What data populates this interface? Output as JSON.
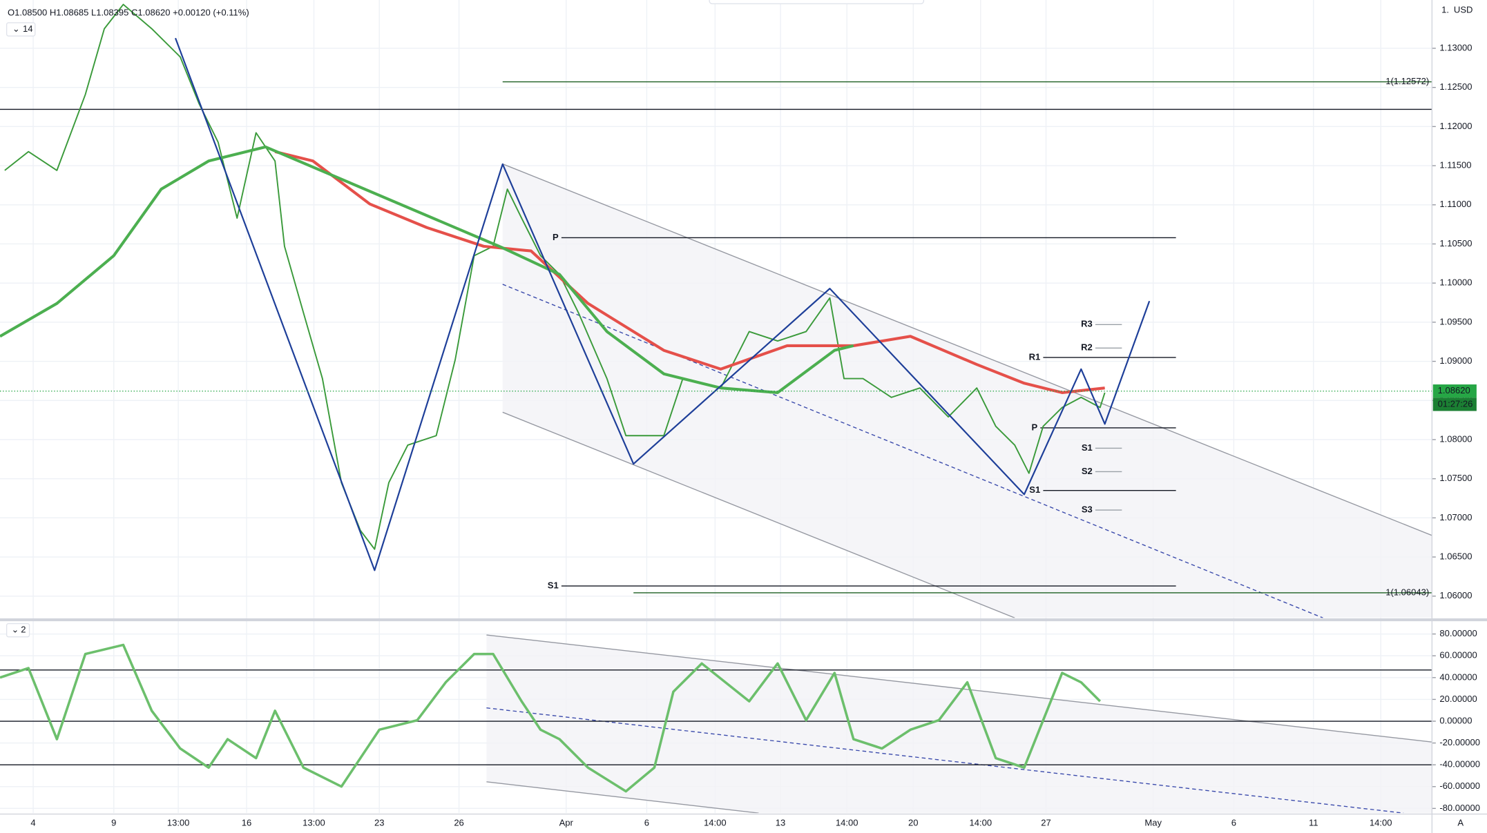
{
  "ui": {
    "ohlc": "O1.08500 H1.08685 L1.08395 C1.08620 +0.00120 (+0.11%)",
    "interval": "14",
    "pane_count": "2",
    "currency": "USD",
    "scale_button": "1.",
    "countdown": "01:27:26"
  },
  "chart_data": [
    {
      "type": "line",
      "xlim": [
        0,
        151
      ],
      "ylim": [
        1.05722,
        1.13617
      ],
      "yticks": [
        {
          "value": 1.06,
          "label": "1.06000"
        },
        {
          "value": 1.065,
          "label": "1.06500"
        },
        {
          "value": 1.07,
          "label": "1.07000"
        },
        {
          "value": 1.075,
          "label": "1.07500"
        },
        {
          "value": 1.08,
          "label": "1.08000"
        },
        {
          "value": 1.085,
          "label": "1.08500"
        },
        {
          "value": 1.09,
          "label": "1.09000"
        },
        {
          "value": 1.095,
          "label": "1.09500"
        },
        {
          "value": 1.1,
          "label": "1.10000"
        },
        {
          "value": 1.105,
          "label": "1.10500"
        },
        {
          "value": 1.11,
          "label": "1.11000"
        },
        {
          "value": 1.115,
          "label": "1.11500"
        },
        {
          "value": 1.12,
          "label": "1.12000"
        },
        {
          "value": 1.125,
          "label": "1.12500"
        },
        {
          "value": 1.13,
          "label": "1.13000"
        }
      ],
      "series": [
        {
          "color": "#3a9a3a",
          "width": 1.4,
          "x": [
            0.5,
            3,
            6,
            9,
            11,
            13,
            16,
            19,
            21,
            23,
            25,
            27,
            29,
            30,
            32,
            34,
            36,
            38,
            39.5,
            41,
            43,
            46,
            48,
            50,
            52,
            53.5,
            55,
            57,
            59,
            61,
            64,
            66,
            68,
            70,
            72,
            76,
            79,
            82,
            85,
            87.5,
            89,
            91,
            94,
            97,
            100,
            103,
            105,
            107,
            108.5,
            110,
            112,
            114,
            116,
            116.5
          ],
          "values": [
            1.1144,
            1.1168,
            1.1144,
            1.1241,
            1.1325,
            1.1356,
            1.1325,
            1.1289,
            1.1229,
            1.118,
            1.1083,
            1.1192,
            1.1156,
            1.1047,
            1.0962,
            1.0878,
            1.0745,
            1.0684,
            1.066,
            1.0745,
            1.0793,
            1.0805,
            1.0902,
            1.1035,
            1.1047,
            1.112,
            1.1083,
            1.1035,
            1.1011,
            1.0962,
            1.0878,
            1.0805,
            1.0805,
            1.0805,
            1.0878,
            1.0866,
            1.0938,
            1.0926,
            1.0938,
            1.0981,
            1.0878,
            1.0878,
            1.0854,
            1.0866,
            1.0829,
            1.0866,
            1.0817,
            1.0793,
            1.0757,
            1.0817,
            1.0841,
            1.0854,
            1.0841,
            1.086
          ]
        },
        {
          "color": "#e5504a",
          "width": 3,
          "x": [
            29,
            33,
            39,
            45,
            51,
            56,
            62,
            70,
            76,
            83,
            90,
            96,
            103,
            108,
            112,
            116.5
          ],
          "values": [
            1.1168,
            1.1156,
            1.1101,
            1.1071,
            1.1047,
            1.1041,
            1.0974,
            1.0914,
            1.089,
            1.092,
            1.092,
            1.0932,
            1.0896,
            1.0872,
            1.086,
            1.0866
          ]
        },
        {
          "color": "#4caf50",
          "width": 3,
          "x": [
            0,
            6,
            12,
            17,
            22,
            28,
            53,
            59,
            64,
            70,
            76,
            82,
            88,
            90
          ],
          "values": [
            1.0932,
            1.0974,
            1.1035,
            1.112,
            1.1156,
            1.1174,
            1.1045,
            1.1011,
            1.0938,
            1.0884,
            1.0866,
            1.086,
            1.0914,
            1.092
          ]
        },
        {
          "color": "#1e3f99",
          "width": 1.6,
          "x": [
            18.5,
            39.5,
            53,
            66.8,
            87.5,
            108,
            114,
            116.5,
            121.2
          ],
          "values": [
            1.1313,
            1.0633,
            1.1152,
            1.0769,
            1.0993,
            1.073,
            1.089,
            1.082,
            1.0977
          ]
        }
      ],
      "levels": [
        {
          "value": 1.12572,
          "label": "1(1.12572)",
          "color": "#1b5e20",
          "x": [
            53,
            151
          ]
        },
        {
          "value": 1.06043,
          "label": "1(1.06043)",
          "color": "#1b5e20",
          "x": [
            66.8,
            151
          ]
        },
        {
          "value": 1.1222,
          "color": "#131722",
          "x": [
            0,
            151
          ]
        }
      ],
      "pivots": [
        {
          "value": 1.1058,
          "label": "P",
          "color": "#131722",
          "x": [
            59.2,
            124
          ]
        },
        {
          "value": 1.0613,
          "label": "S1",
          "color": "#131722",
          "x": [
            59.2,
            124
          ]
        },
        {
          "value": 1.0905,
          "label": "R1",
          "color": "#131722",
          "x": [
            110,
            124
          ]
        },
        {
          "value": 1.0815,
          "label": "P",
          "color": "#131722",
          "x": [
            109.7,
            124
          ]
        },
        {
          "value": 1.0735,
          "label": "S1",
          "color": "#131722",
          "x": [
            110,
            124
          ]
        },
        {
          "value": 1.0947,
          "label": "R3",
          "color": "#9aa0a6",
          "x": [
            115.5,
            118.3
          ]
        },
        {
          "value": 1.0917,
          "label": "R2",
          "color": "#9aa0a6",
          "x": [
            115.5,
            118.3
          ]
        },
        {
          "value": 1.0789,
          "label": "S1",
          "color": "#9aa0a6",
          "x": [
            115.5,
            118.3
          ]
        },
        {
          "value": 1.0759,
          "label": "S2",
          "color": "#9aa0a6",
          "x": [
            115.5,
            118.3
          ]
        },
        {
          "value": 1.071,
          "label": "S3",
          "color": "#9aa0a6",
          "x": [
            115.5,
            118.3
          ]
        }
      ],
      "last_price": {
        "value": 1.0862,
        "label": "1.08620",
        "color": "#26a645"
      }
    },
    {
      "type": "line",
      "xlim": [
        0,
        151
      ],
      "ylim": [
        -84.3,
        91.3
      ],
      "yticks": [
        {
          "value": 80,
          "label": "80.00000"
        },
        {
          "value": 60,
          "label": "60.00000"
        },
        {
          "value": 40,
          "label": "40.00000"
        },
        {
          "value": 20,
          "label": "20.00000"
        },
        {
          "value": 0,
          "label": "0.00000"
        },
        {
          "value": -20,
          "label": "-20.00000"
        },
        {
          "value": -40,
          "label": "-40.00000"
        },
        {
          "value": -60,
          "label": "-60.00000"
        },
        {
          "value": -80,
          "label": "-80.00000"
        }
      ],
      "xticks": [
        {
          "value": 3.5,
          "label": "4"
        },
        {
          "value": 12,
          "label": "9"
        },
        {
          "value": 18.8,
          "label": "13:00"
        },
        {
          "value": 26,
          "label": "16"
        },
        {
          "value": 33.1,
          "label": "13:00"
        },
        {
          "value": 40,
          "label": "23"
        },
        {
          "value": 48.4,
          "label": "26"
        },
        {
          "value": 59.7,
          "label": "Apr"
        },
        {
          "value": 68.2,
          "label": "6"
        },
        {
          "value": 75.4,
          "label": "14:00"
        },
        {
          "value": 82.3,
          "label": "13"
        },
        {
          "value": 89.3,
          "label": "14:00"
        },
        {
          "value": 96.3,
          "label": "20"
        },
        {
          "value": 103.4,
          "label": "14:00"
        },
        {
          "value": 110.3,
          "label": "27"
        },
        {
          "value": 121.6,
          "label": "May"
        },
        {
          "value": 130.1,
          "label": "6"
        },
        {
          "value": 138.5,
          "label": "11"
        },
        {
          "value": 145.6,
          "label": "14:00"
        }
      ],
      "levels": [
        {
          "value": 47,
          "color": "#131722",
          "x": [
            0,
            151
          ]
        },
        {
          "value": 0,
          "color": "#131722",
          "x": [
            0,
            151
          ]
        },
        {
          "value": -40,
          "color": "#131722",
          "x": [
            0,
            151
          ]
        }
      ],
      "series": [
        {
          "color": "#6cbf6c",
          "width": 2.6,
          "x": [
            0,
            3,
            6,
            9,
            13,
            16,
            19,
            22,
            24,
            27,
            29,
            32,
            36,
            40,
            44,
            47,
            50,
            52,
            55,
            57,
            59,
            62,
            66,
            69,
            71,
            74,
            79,
            82,
            85,
            88,
            90,
            93,
            96,
            99,
            102,
            105,
            108,
            110,
            112,
            114,
            116
          ],
          "values": [
            40,
            48.7,
            -16.5,
            61.7,
            70,
            9.6,
            -25,
            -42.6,
            -16.5,
            -33.9,
            9.6,
            -42.6,
            -60,
            -7.8,
            0.9,
            35.7,
            61.7,
            61.7,
            18.3,
            -7.8,
            -16.5,
            -42.6,
            -64.3,
            -42.6,
            27,
            53,
            18.3,
            53,
            0.9,
            44.3,
            -16.5,
            -25,
            -7.8,
            0.9,
            35.7,
            -33.9,
            -42.6,
            0.9,
            44.3,
            35.7,
            18.3
          ]
        }
      ]
    }
  ]
}
